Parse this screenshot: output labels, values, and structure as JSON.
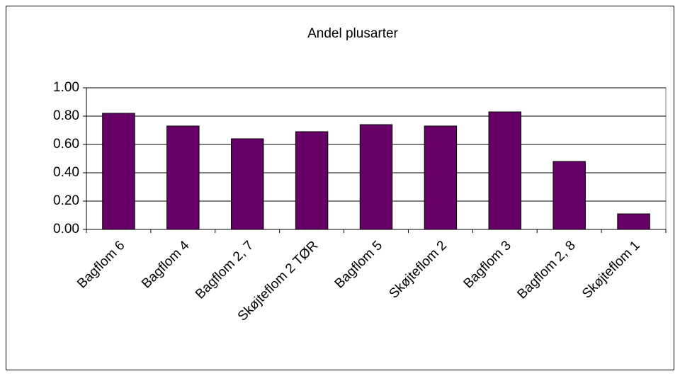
{
  "chart_data": {
    "type": "bar",
    "title": "Andel plusarter",
    "categories": [
      "Bagflom 6",
      "Bagflom 4",
      "Bagflom 2, 7",
      "Skøjteflom 2 TØR",
      "Bagflom 5",
      "Skøjteflom 2",
      "Bagflom 3",
      "Bagflom 2, 8",
      "Skøjteflom 1"
    ],
    "values": [
      0.82,
      0.73,
      0.64,
      0.69,
      0.74,
      0.73,
      0.83,
      0.48,
      0.11
    ],
    "color": "#660066",
    "ylim": [
      0,
      1
    ],
    "yticks": [
      {
        "value": 0,
        "label": "0.00"
      },
      {
        "value": 0.2,
        "label": "0.20"
      },
      {
        "value": 0.4,
        "label": "0.40"
      },
      {
        "value": 0.6,
        "label": "0.60"
      },
      {
        "value": 0.8,
        "label": "0.80"
      },
      {
        "value": 1,
        "label": "1.00"
      }
    ],
    "grid": true
  }
}
